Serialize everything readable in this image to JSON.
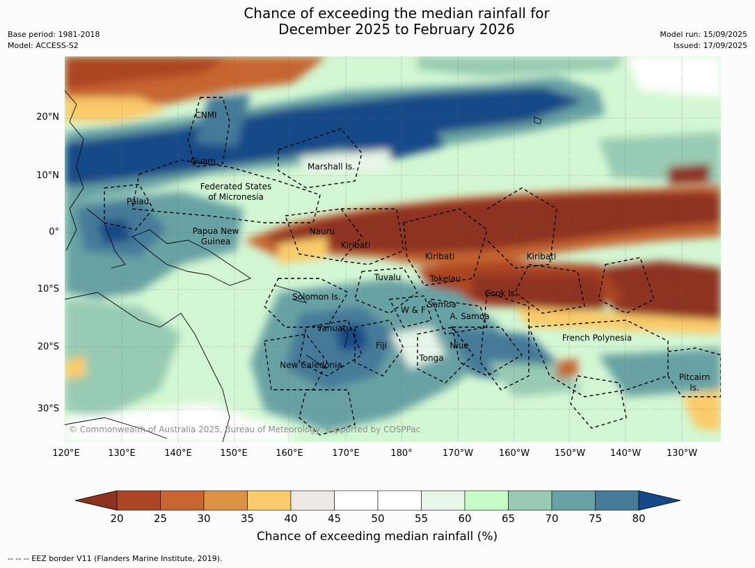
{
  "title_line1": "Chance of exceeding the median rainfall for",
  "title_line2": "December 2025 to February 2026",
  "meta_left": [
    "Base period: 1981-2018",
    "Model: ACCESS-S2"
  ],
  "meta_right": [
    "Model run: 15/09/2025",
    "Issued: 17/09/2025"
  ],
  "lat_labels": [
    "20°N",
    "10°N",
    "0°",
    "10°S",
    "20°S",
    "30°S"
  ],
  "lon_labels": [
    "120°E",
    "130°E",
    "140°E",
    "150°E",
    "160°E",
    "170°E",
    "180°",
    "170°W",
    "160°W",
    "150°W",
    "140°W",
    "130°W"
  ],
  "regions": [
    {
      "name": "CNMI"
    },
    {
      "name": "Guam"
    },
    {
      "name": "Marshall Is."
    },
    {
      "name": "Federated States\nof Micronesia"
    },
    {
      "name": "Palau"
    },
    {
      "name": "Papua New\nGuinea"
    },
    {
      "name": "Nauru"
    },
    {
      "name": "Kiribati"
    },
    {
      "name": "Kiribati"
    },
    {
      "name": "Kiribati"
    },
    {
      "name": "Tuvalu"
    },
    {
      "name": "Tokelau"
    },
    {
      "name": "Solomon Is."
    },
    {
      "name": "Samoa"
    },
    {
      "name": "W & F"
    },
    {
      "name": "A. Samoa"
    },
    {
      "name": "Cook Is."
    },
    {
      "name": "Vanuatu"
    },
    {
      "name": "Fiji"
    },
    {
      "name": "Niue"
    },
    {
      "name": "Tonga"
    },
    {
      "name": "New Caledonia"
    },
    {
      "name": "French Polynesia"
    },
    {
      "name": "Pitcairn\nIs."
    }
  ],
  "copyright": "© Commonwealth of Australia 2025, Bureau of Meteorology, supported by COSPPac",
  "colorbar": {
    "ticks": [
      "20",
      "25",
      "30",
      "35",
      "40",
      "45",
      "50",
      "55",
      "60",
      "65",
      "70",
      "75",
      "80"
    ],
    "colors": [
      "#8e3220",
      "#ab4524",
      "#c66530",
      "#de9044",
      "#fbcb6b",
      "#ece9e2",
      "#ffffff",
      "#ffffff",
      "#e8f6e8",
      "#c8fcc8",
      "#98cbb3",
      "#69a2a4",
      "#457a98",
      "#134a87"
    ],
    "label": "Chance of exceeding median rainfall (%)"
  },
  "footer": "-- -- -- EEZ border V11 (Flanders Marine Institute, 2019)."
}
